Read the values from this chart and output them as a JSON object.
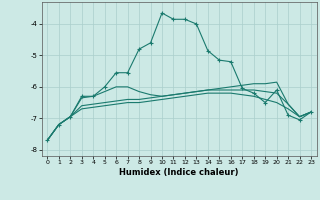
{
  "title": "",
  "xlabel": "Humidex (Indice chaleur)",
  "ylabel": "",
  "bg_color": "#cce9e5",
  "grid_color": "#aacfcc",
  "line_color": "#1a7a6e",
  "marker_color": "#1a7a6e",
  "xlim": [
    -0.5,
    23.5
  ],
  "ylim": [
    -8.2,
    -3.3
  ],
  "yticks": [
    -8,
    -7,
    -6,
    -5,
    -4
  ],
  "xticks": [
    0,
    1,
    2,
    3,
    4,
    5,
    6,
    7,
    8,
    9,
    10,
    11,
    12,
    13,
    14,
    15,
    16,
    17,
    18,
    19,
    20,
    21,
    22,
    23
  ],
  "line1_x": [
    0,
    1,
    2,
    3,
    4,
    5,
    6,
    7,
    8,
    9,
    10,
    11,
    12,
    13,
    14,
    15,
    16,
    17,
    18,
    19,
    20,
    21,
    22,
    23
  ],
  "line1_y": [
    -7.7,
    -7.2,
    -6.95,
    -6.3,
    -6.3,
    -6.0,
    -5.55,
    -5.55,
    -4.8,
    -4.6,
    -3.65,
    -3.85,
    -3.85,
    -4.0,
    -4.85,
    -5.15,
    -5.2,
    -6.05,
    -6.2,
    -6.5,
    -6.1,
    -6.9,
    -7.05,
    -6.8
  ],
  "line2_x": [
    0,
    1,
    2,
    3,
    4,
    5,
    6,
    7,
    8,
    9,
    10,
    11,
    12,
    13,
    14,
    15,
    16,
    17,
    18,
    19,
    20,
    21,
    22,
    23
  ],
  "line2_y": [
    -7.7,
    -7.2,
    -6.95,
    -6.35,
    -6.3,
    -6.15,
    -6.0,
    -6.0,
    -6.15,
    -6.25,
    -6.3,
    -6.25,
    -6.2,
    -6.15,
    -6.1,
    -6.05,
    -6.0,
    -5.95,
    -5.9,
    -5.9,
    -5.85,
    -6.55,
    -6.95,
    -6.8
  ],
  "line3_x": [
    0,
    1,
    2,
    3,
    4,
    5,
    6,
    7,
    8,
    9,
    10,
    11,
    12,
    13,
    14,
    15,
    16,
    17,
    18,
    19,
    20,
    21,
    22,
    23
  ],
  "line3_y": [
    -7.7,
    -7.2,
    -6.95,
    -6.6,
    -6.55,
    -6.5,
    -6.45,
    -6.4,
    -6.4,
    -6.35,
    -6.3,
    -6.25,
    -6.2,
    -6.15,
    -6.1,
    -6.1,
    -6.1,
    -6.1,
    -6.1,
    -6.15,
    -6.2,
    -6.55,
    -6.95,
    -6.8
  ],
  "line4_x": [
    0,
    1,
    2,
    3,
    4,
    5,
    6,
    7,
    8,
    9,
    10,
    11,
    12,
    13,
    14,
    15,
    16,
    17,
    18,
    19,
    20,
    21,
    22,
    23
  ],
  "line4_y": [
    -7.7,
    -7.2,
    -6.95,
    -6.7,
    -6.65,
    -6.6,
    -6.55,
    -6.5,
    -6.5,
    -6.45,
    -6.4,
    -6.35,
    -6.3,
    -6.25,
    -6.2,
    -6.2,
    -6.2,
    -6.25,
    -6.3,
    -6.4,
    -6.5,
    -6.7,
    -6.95,
    -6.8
  ]
}
